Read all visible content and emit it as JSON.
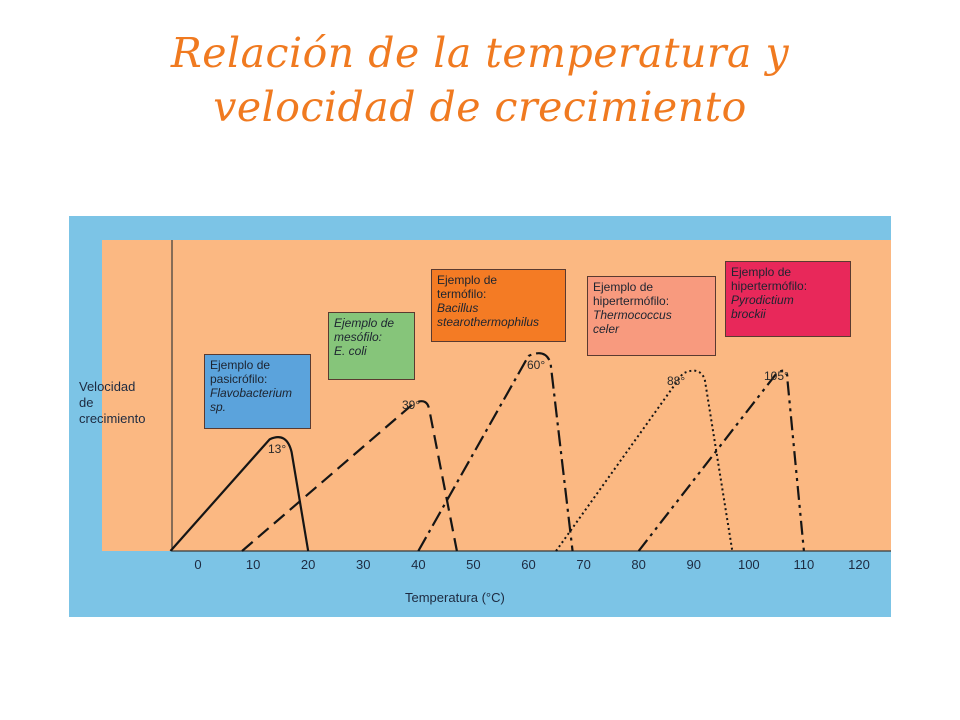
{
  "slide": {
    "title_line1": "Relación de la temperatura y",
    "title_line2": "velocidad de crecimiento"
  },
  "colors": {
    "title": "#f07a20",
    "outer_background": "#7cc4e6",
    "plot_background": "#fbb882",
    "box_psychrophile": "#5ba3dc",
    "box_mesophile": "#86c57a",
    "box_thermophile": "#f47b24",
    "box_hyperthermophile": "#f89a7e",
    "box_hyperthermophile2": "#e8285a"
  },
  "chart_data": {
    "type": "line",
    "xlabel": "Temperatura (°C)",
    "ylabel_lines": [
      "Velocidad",
      "de",
      "crecimiento"
    ],
    "xlim": [
      -5,
      120
    ],
    "ylim": [
      0,
      1
    ],
    "x_ticks": [
      0,
      10,
      20,
      30,
      40,
      50,
      60,
      70,
      80,
      90,
      100,
      110,
      120
    ],
    "grid": false,
    "legend": "boxes-above-curves",
    "series": [
      {
        "key": "psychrophile",
        "dash": "solid",
        "peak_label": "13°",
        "x": [
          -5,
          13,
          17,
          20
        ],
        "y": [
          0,
          0.475,
          0.42,
          0
        ],
        "box_lines": [
          "Ejemplo de",
          "pasicrófilo:"
        ],
        "box_italic": [
          "Flavobacterium",
          "sp."
        ]
      },
      {
        "key": "mesophile",
        "dash": "dashed",
        "peak_label": "39°",
        "x": [
          8,
          39,
          42,
          47
        ],
        "y": [
          0,
          0.625,
          0.6,
          0
        ],
        "box_lines": [
          "Ejemplo de",
          "mesófilo:"
        ],
        "box_italic": [
          "E. coli"
        ]
      },
      {
        "key": "thermophile",
        "dash": "dashdot",
        "peak_label": "60°",
        "x": [
          40,
          60,
          64,
          68
        ],
        "y": [
          0,
          0.83,
          0.8,
          0
        ],
        "box_lines": [
          "Ejemplo de",
          "termófilo:"
        ],
        "box_italic": [
          "Bacillus",
          "stearothermophilus"
        ]
      },
      {
        "key": "hyperthermophile",
        "dash": "dotted",
        "peak_label": "88°",
        "x": [
          65,
          88,
          92,
          97
        ],
        "y": [
          0,
          0.755,
          0.73,
          0
        ],
        "box_lines": [
          "Ejemplo de",
          "hipertermófilo:"
        ],
        "box_italic": [
          "Thermococcus",
          "celer"
        ]
      },
      {
        "key": "hyperthermophile2",
        "dash": "dashdotdot",
        "peak_label": "105°",
        "x": [
          80,
          105,
          107,
          110
        ],
        "y": [
          0,
          0.755,
          0.73,
          0
        ],
        "box_lines": [
          "Ejemplo de",
          "hipertermófilo:"
        ],
        "box_italic": [
          "Pyrodictium",
          "brockii"
        ]
      }
    ]
  }
}
